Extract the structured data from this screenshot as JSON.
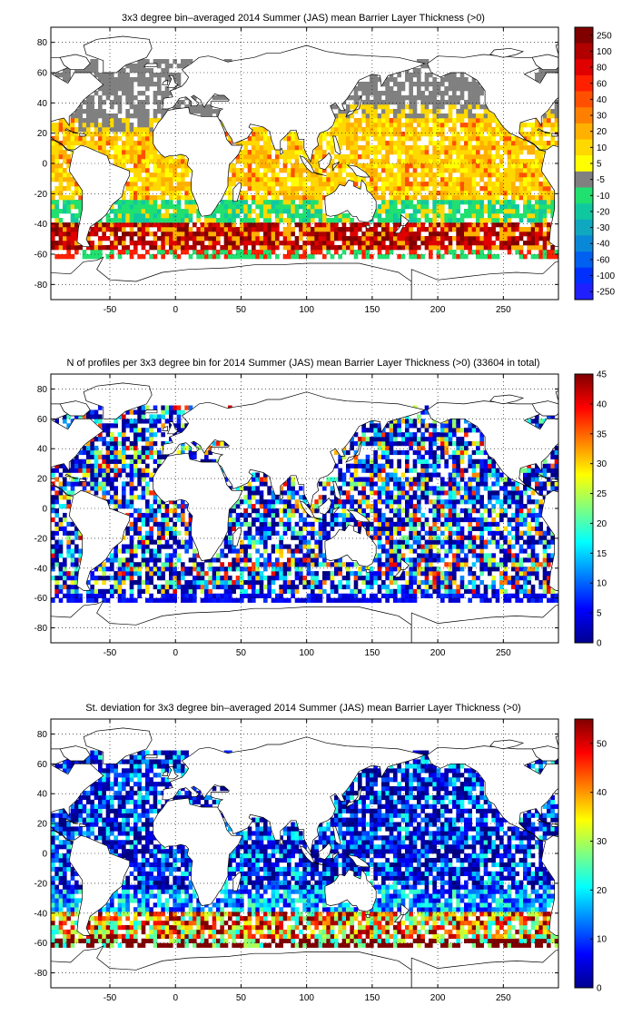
{
  "chart_data": [
    {
      "type": "heatmap",
      "title": "3x3 degree bin–averaged 2014 Summer (JAS) mean Barrier Layer Thickness (>0)",
      "xlim": [
        -95,
        292
      ],
      "ylim": [
        -90,
        90
      ],
      "x_ticks": [
        -50,
        0,
        50,
        100,
        150,
        200,
        250
      ],
      "y_ticks": [
        80,
        60,
        40,
        20,
        0,
        -20,
        -40,
        -60,
        -80
      ],
      "colorbar": {
        "kind": "discrete",
        "labels": [
          "250",
          "100",
          "80",
          "60",
          "40",
          "30",
          "20",
          "10",
          "5",
          "-5",
          "-10",
          "-20",
          "-30",
          "-40",
          "-60",
          "-100",
          "-250"
        ],
        "colors": [
          "#800000",
          "#b00000",
          "#e00000",
          "#ff2000",
          "#ff5000",
          "#ff8000",
          "#ffb000",
          "#ffd800",
          "#ffff00",
          "#808080",
          "#20e070",
          "#10c8a0",
          "#10a8c0",
          "#0a88d8",
          "#0060f0",
          "#0030ff",
          "#2020ff"
        ]
      },
      "grid": true
    },
    {
      "type": "heatmap",
      "title": "N of profiles per 3x3 degree bin for 2014 Summer (JAS) mean Barrier Layer Thickness (>0) (33604 in total)",
      "xlim": [
        -95,
        292
      ],
      "ylim": [
        -90,
        90
      ],
      "x_ticks": [
        -50,
        0,
        50,
        100,
        150,
        200,
        250
      ],
      "y_ticks": [
        80,
        60,
        40,
        20,
        0,
        -20,
        -40,
        -60,
        -80
      ],
      "colorbar": {
        "kind": "continuous",
        "range": [
          0,
          45
        ],
        "ticks": [
          0,
          5,
          10,
          15,
          20,
          25,
          30,
          35,
          40,
          45
        ]
      },
      "grid": true
    },
    {
      "type": "heatmap",
      "title": "St. deviation for 3x3 degree bin–averaged 2014 Summer (JAS) mean Barrier Layer Thickness (>0)",
      "xlim": [
        -95,
        292
      ],
      "ylim": [
        -90,
        90
      ],
      "x_ticks": [
        -50,
        0,
        50,
        100,
        150,
        200,
        250
      ],
      "y_ticks": [
        80,
        60,
        40,
        20,
        0,
        -20,
        -40,
        -60,
        -80
      ],
      "colorbar": {
        "kind": "continuous",
        "range": [
          0,
          55
        ],
        "ticks": [
          0,
          10,
          20,
          30,
          40,
          50
        ]
      },
      "grid": true
    }
  ]
}
